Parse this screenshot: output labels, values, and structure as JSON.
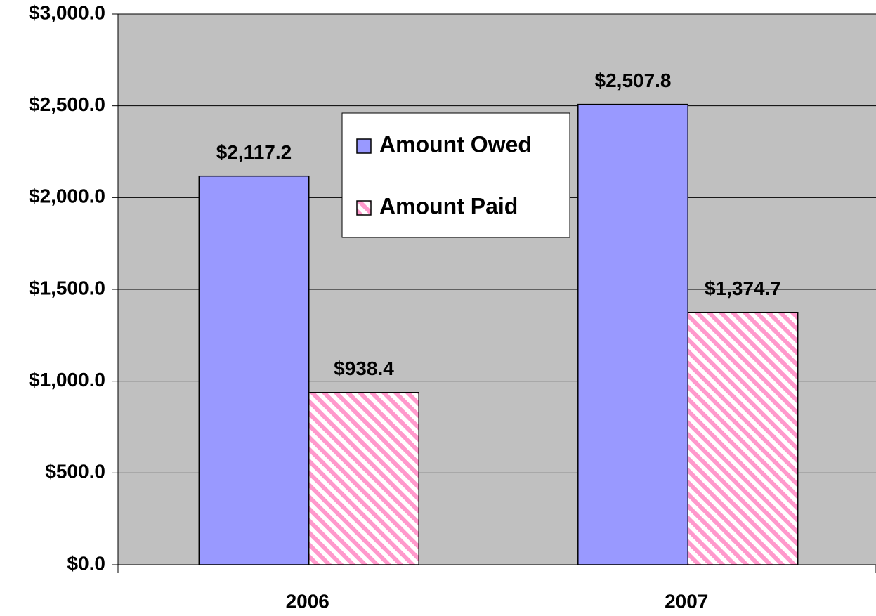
{
  "chart_data": {
    "type": "bar",
    "categories": [
      "2006",
      "2007"
    ],
    "series": [
      {
        "name": "Amount Owed",
        "color": "#9999ff",
        "values": [
          2117.2,
          2507.8
        ],
        "value_labels": [
          "$2,117.2",
          "$2,507.8"
        ]
      },
      {
        "name": "Amount Paid",
        "color": "#ff99cc",
        "hatch": true,
        "values": [
          938.4,
          1374.7
        ],
        "value_labels": [
          "$938.4",
          "$1,374.7"
        ]
      }
    ],
    "ylim": [
      0,
      3000
    ],
    "yticks": [
      {
        "value": 0,
        "label": "$0.0"
      },
      {
        "value": 500,
        "label": "$500.0"
      },
      {
        "value": 1000,
        "label": "$1,000.0"
      },
      {
        "value": 1500,
        "label": "$1,500.0"
      },
      {
        "value": 2000,
        "label": "$2,000.0"
      },
      {
        "value": 2500,
        "label": "$2,500.0"
      },
      {
        "value": 3000,
        "label": "$3,000.0"
      }
    ],
    "grid": true,
    "legend": "top"
  }
}
